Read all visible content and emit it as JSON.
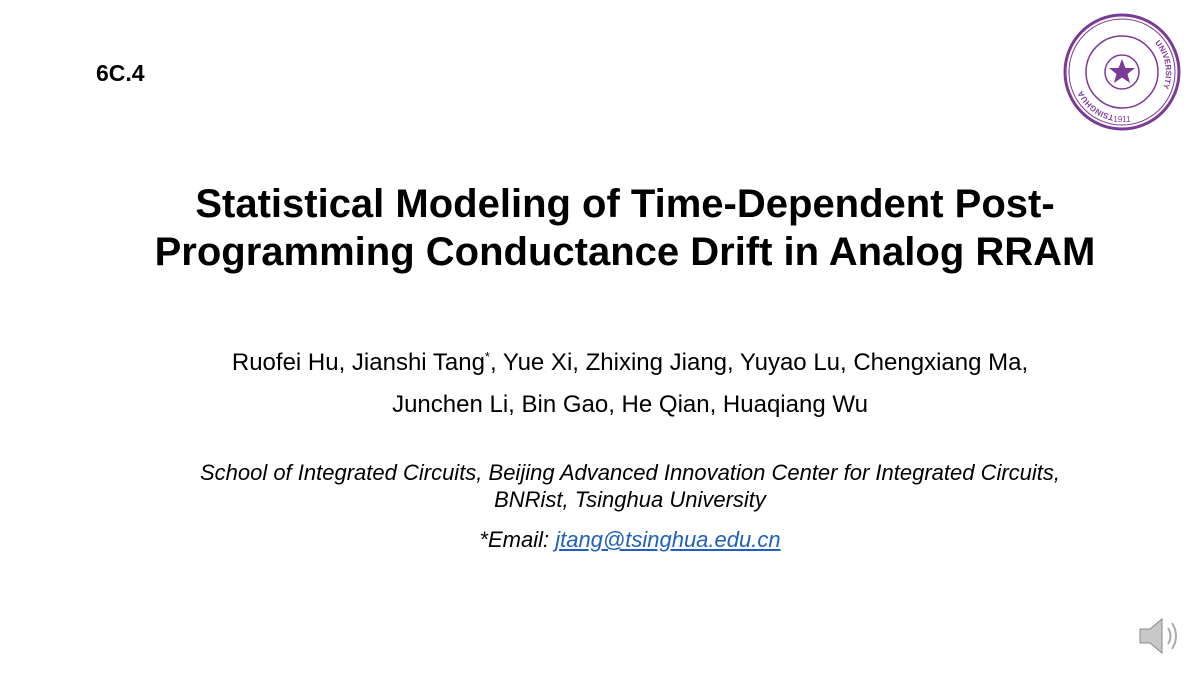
{
  "slide_number": "6C.4",
  "title": [
    "Statistical Modeling of Time-Dependent Post-",
    "Programming Conductance Drift in Analog RRAM"
  ],
  "authors": {
    "line1_before": "Ruofei Hu, Jianshi Tang",
    "corresponding_mark": "*",
    "line1_after": ", Yue Xi, Zhixing Jiang, Yuyao Lu, Chengxiang Ma,",
    "line2": "Junchen Li, Bin Gao, He Qian, Huaqiang Wu"
  },
  "affiliation": [
    "School of Integrated Circuits, Beijing Advanced Innovation Center for Integrated Circuits,",
    "BNRist, Tsinghua University"
  ],
  "email": {
    "label": "*Email:",
    "address": "jtang@tsinghua.edu.cn"
  },
  "logo": {
    "left": "TSINGHUA",
    "right": "UNIVERSITY",
    "year": "1911"
  }
}
